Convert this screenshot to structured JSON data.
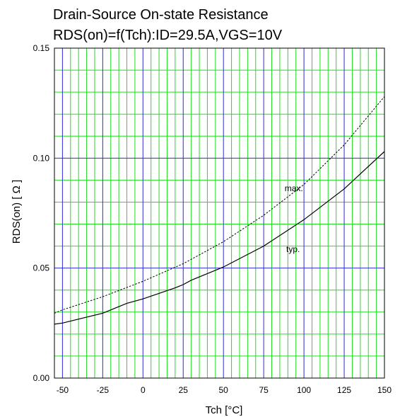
{
  "chart_data": {
    "type": "line",
    "title": "Drain-Source On-state Resistance",
    "subtitle": "RDS(on)=f(Tch):ID=29.5A,VGS=10V",
    "xlabel": "Tch [°C]",
    "ylabel": "RDS(on) [ Ω ]",
    "xlim": [
      -55,
      150
    ],
    "ylim": [
      0,
      0.15
    ],
    "x_ticks": [
      -50,
      -25,
      0,
      25,
      50,
      75,
      100,
      125,
      150
    ],
    "x_tick_labels": [
      "-50",
      "-25",
      "0",
      "25",
      "50",
      "75",
      "100",
      "125",
      "150"
    ],
    "y_ticks": [
      0,
      0.05,
      0.1,
      0.15
    ],
    "y_tick_labels": [
      "0.00",
      "0.05",
      "0.10",
      "0.15"
    ],
    "grid": true,
    "colors": {
      "major_grid": "#2b2bd6",
      "minor_grid": "#22dd22",
      "line": "#000000"
    },
    "series": [
      {
        "name": "max.",
        "style": "dashed",
        "x": [
          -55,
          -50,
          -25,
          0,
          25,
          50,
          75,
          100,
          125,
          150
        ],
        "y": [
          0.0295,
          0.031,
          0.037,
          0.044,
          0.052,
          0.062,
          0.074,
          0.088,
          0.106,
          0.128
        ]
      },
      {
        "name": "typ.",
        "style": "solid",
        "x": [
          -55,
          -50,
          -25,
          -10,
          0,
          20,
          25,
          30,
          50,
          75,
          100,
          125,
          150
        ],
        "y": [
          0.0245,
          0.025,
          0.0295,
          0.034,
          0.036,
          0.041,
          0.0425,
          0.0445,
          0.0505,
          0.06,
          0.072,
          0.086,
          0.103
        ]
      }
    ]
  }
}
